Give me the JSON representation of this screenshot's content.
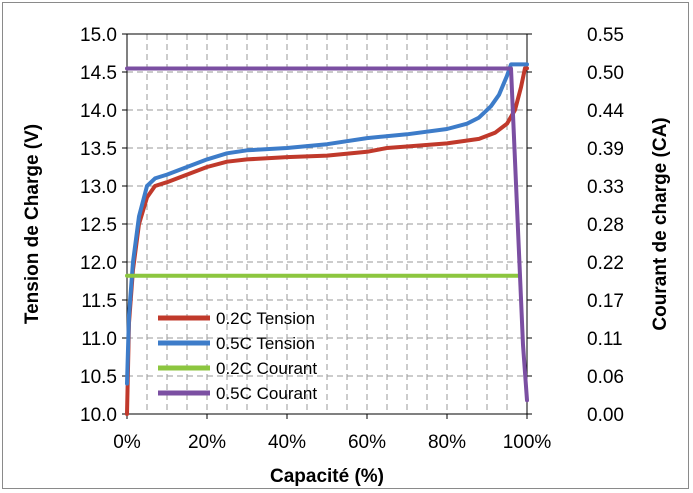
{
  "chart_data": {
    "type": "line",
    "title": "",
    "xlabel": "Capacité (%)",
    "ylabel_left": "Tension de Charge (V)",
    "ylabel_right": "Courant de charge (CA)",
    "xlim": [
      0,
      100
    ],
    "ylim_left": [
      10.0,
      15.0
    ],
    "ylim_right": [
      0.0,
      0.55
    ],
    "x_ticks": [
      "0%",
      "20%",
      "40%",
      "60%",
      "80%",
      "100%"
    ],
    "x_tick_values": [
      0,
      20,
      40,
      60,
      80,
      100
    ],
    "y_ticks_left": [
      "10.0",
      "10.5",
      "11.0",
      "11.5",
      "12.0",
      "12.5",
      "13.0",
      "13.5",
      "14.0",
      "14.5",
      "15.0"
    ],
    "y_ticks_right": [
      "0.00",
      "0.06",
      "0.11",
      "0.17",
      "0.22",
      "0.28",
      "0.33",
      "0.39",
      "0.44",
      "0.50",
      "0.55"
    ],
    "grid": true,
    "legend_position": "bottom-left",
    "series": [
      {
        "name": "0.2C Tension",
        "axis": "left",
        "color": "#c0392b",
        "points": [
          [
            0,
            10.0
          ],
          [
            0.5,
            11.2
          ],
          [
            1.5,
            11.9
          ],
          [
            3,
            12.5
          ],
          [
            5,
            12.85
          ],
          [
            7,
            13.0
          ],
          [
            10,
            13.05
          ],
          [
            15,
            13.15
          ],
          [
            20,
            13.25
          ],
          [
            25,
            13.32
          ],
          [
            30,
            13.35
          ],
          [
            40,
            13.38
          ],
          [
            50,
            13.4
          ],
          [
            60,
            13.45
          ],
          [
            65,
            13.5
          ],
          [
            70,
            13.52
          ],
          [
            80,
            13.56
          ],
          [
            88,
            13.62
          ],
          [
            92,
            13.7
          ],
          [
            95,
            13.82
          ],
          [
            97,
            14.0
          ],
          [
            98.5,
            14.3
          ],
          [
            99.5,
            14.55
          ],
          [
            100,
            14.55
          ]
        ]
      },
      {
        "name": "0.5C Tension",
        "axis": "left",
        "color": "#3d7cc9",
        "points": [
          [
            0,
            10.4
          ],
          [
            0.5,
            11.3
          ],
          [
            1.5,
            12.0
          ],
          [
            3,
            12.6
          ],
          [
            5,
            13.0
          ],
          [
            7,
            13.1
          ],
          [
            10,
            13.15
          ],
          [
            15,
            13.25
          ],
          [
            20,
            13.35
          ],
          [
            25,
            13.43
          ],
          [
            30,
            13.47
          ],
          [
            40,
            13.5
          ],
          [
            50,
            13.55
          ],
          [
            60,
            13.63
          ],
          [
            70,
            13.68
          ],
          [
            80,
            13.75
          ],
          [
            85,
            13.82
          ],
          [
            88,
            13.9
          ],
          [
            91,
            14.05
          ],
          [
            93,
            14.2
          ],
          [
            95,
            14.45
          ],
          [
            96,
            14.6
          ],
          [
            97,
            14.6
          ],
          [
            98,
            14.6
          ],
          [
            100,
            14.6
          ]
        ]
      },
      {
        "name": "0.2C Courant",
        "axis": "right",
        "color": "#8cc63f",
        "points": [
          [
            0,
            0.2
          ],
          [
            20,
            0.2
          ],
          [
            40,
            0.2
          ],
          [
            60,
            0.2
          ],
          [
            80,
            0.2
          ],
          [
            98,
            0.2
          ]
        ]
      },
      {
        "name": "0.5C Courant",
        "axis": "right",
        "color": "#7b4fa2",
        "points": [
          [
            0,
            0.5
          ],
          [
            20,
            0.5
          ],
          [
            40,
            0.5
          ],
          [
            60,
            0.5
          ],
          [
            80,
            0.5
          ],
          [
            96,
            0.5
          ],
          [
            97.5,
            0.3
          ],
          [
            99,
            0.1
          ],
          [
            100,
            0.02
          ]
        ]
      }
    ]
  }
}
